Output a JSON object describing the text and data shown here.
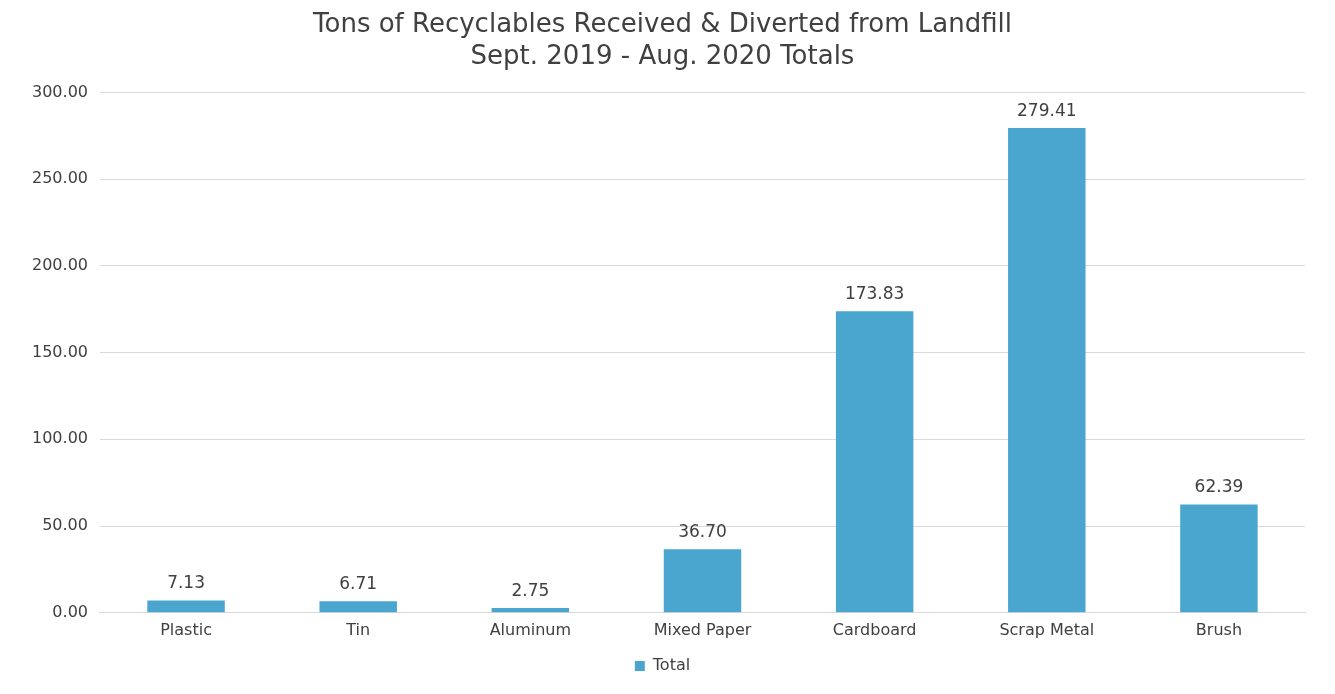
{
  "chart_data": {
    "type": "bar",
    "title": [
      "Tons of Recyclables Received & Diverted from Landfill",
      "Sept. 2019 - Aug. 2020 Totals"
    ],
    "categories": [
      "Plastic",
      "Tin",
      "Aluminum",
      "Mixed Paper",
      "Cardboard",
      "Scrap Metal",
      "Brush"
    ],
    "series": [
      {
        "name": "Total",
        "color": "#4aa6cf",
        "values": [
          7.13,
          6.71,
          2.75,
          36.7,
          173.83,
          279.41,
          62.39
        ],
        "value_labels": [
          "7.13",
          "6.71",
          "2.75",
          "36.70",
          "173.83",
          "279.41",
          "62.39"
        ]
      }
    ],
    "ylim": [
      0,
      300
    ],
    "yticks": [
      {
        "value": 0,
        "label": "0.00"
      },
      {
        "value": 50,
        "label": "50.00"
      },
      {
        "value": 100,
        "label": "100.00"
      },
      {
        "value": 150,
        "label": "150.00"
      },
      {
        "value": 200,
        "label": "200.00"
      },
      {
        "value": 250,
        "label": "250.00"
      },
      {
        "value": 300,
        "label": "300.00"
      }
    ],
    "grid": "y",
    "legend": "bottom"
  }
}
